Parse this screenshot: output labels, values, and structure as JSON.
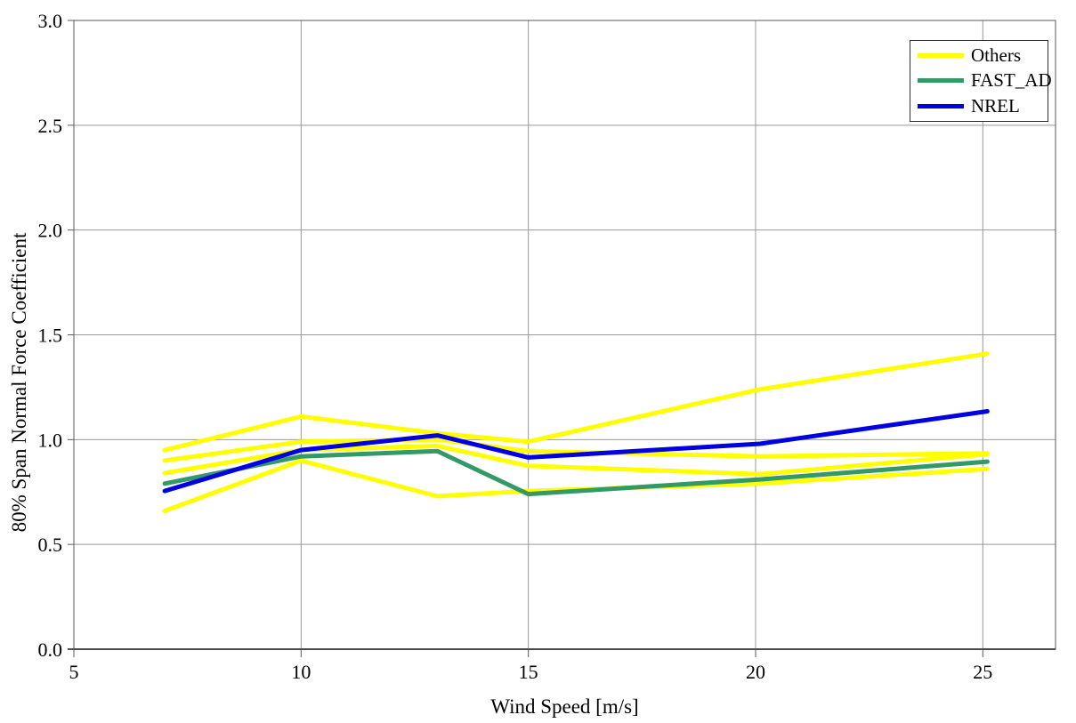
{
  "chart_data": {
    "type": "line",
    "title": "",
    "xlabel": "Wind Speed [m/s]",
    "ylabel": "80% Span Normal Force Coefficient",
    "x": [
      7,
      10,
      13,
      15,
      20.1,
      25.1
    ],
    "series": [
      {
        "name": "Others",
        "color": "#FFFF00",
        "values": [
          0.95,
          1.11,
          1.03,
          0.99,
          1.24,
          1.41
        ]
      },
      {
        "name": "Others",
        "color": "#FFFF00",
        "values": [
          0.9,
          0.99,
          1.0,
          0.945,
          0.92,
          0.935
        ]
      },
      {
        "name": "Others",
        "color": "#FFFF00",
        "values": [
          0.84,
          0.95,
          0.97,
          0.875,
          0.835,
          0.93
        ]
      },
      {
        "name": "Others",
        "color": "#FFFF00",
        "values": [
          0.66,
          0.9,
          0.73,
          0.755,
          0.79,
          0.86
        ]
      },
      {
        "name": "FAST_AD",
        "color": "#339966",
        "values": [
          0.79,
          0.92,
          0.945,
          0.74,
          0.81,
          0.895
        ]
      },
      {
        "name": "NREL",
        "color": "#0000E0",
        "values": [
          0.755,
          0.95,
          1.02,
          0.915,
          0.98,
          1.135
        ]
      }
    ],
    "legend": {
      "position": "top-right",
      "entries": [
        {
          "label": "Others",
          "color": "#FFFF00"
        },
        {
          "label": "FAST_AD",
          "color": "#339966"
        },
        {
          "label": "NREL",
          "color": "#0000E0"
        }
      ]
    },
    "x_ticks": {
      "values": [
        5,
        10,
        15,
        20,
        25
      ],
      "labels": [
        "5",
        "10",
        "15",
        "20",
        "25"
      ]
    },
    "y_ticks": {
      "values": [
        0,
        0.5,
        1,
        1.5,
        2,
        2.5,
        3
      ],
      "labels": [
        "0.0",
        "0.5",
        "1.0",
        "1.5",
        "2.0",
        "2.5",
        "3.0"
      ]
    },
    "xlim": [
      5,
      26.6
    ],
    "ylim": [
      0,
      3
    ],
    "grid": true,
    "colors": {
      "gridline": "#999999",
      "axis_border": "#595959",
      "axis_bottom": "#4a4a4a",
      "text": "#000000"
    }
  }
}
